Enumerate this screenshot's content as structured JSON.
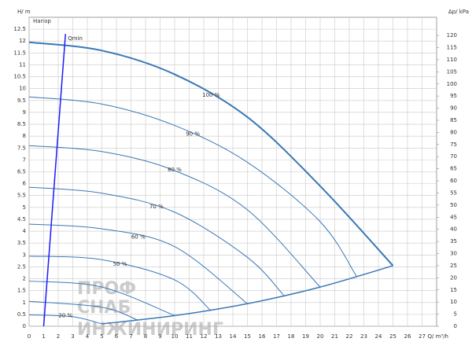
{
  "chart_data": {
    "type": "line",
    "ylabel": "H/ m",
    "ylabel_inner": "Напор",
    "y2label": "Δp/ kPa",
    "xlabel": "Q/ m³/h",
    "xlim": [
      0,
      28
    ],
    "xticks": [
      0,
      1,
      2,
      3,
      4,
      5,
      6,
      7,
      8,
      9,
      10,
      11,
      12,
      13,
      14,
      15,
      16,
      17,
      18,
      19,
      20,
      21,
      22,
      23,
      24,
      25,
      26,
      27
    ],
    "ylim": [
      0,
      13
    ],
    "yticks": [
      0,
      0.5,
      1,
      1.5,
      2,
      2.5,
      3,
      3.5,
      4,
      4.5,
      5,
      5.5,
      6,
      6.5,
      7,
      7.5,
      8,
      8.5,
      9,
      9.5,
      10,
      10.5,
      11,
      11.5,
      12,
      12.5
    ],
    "y2lim": [
      0,
      127.5
    ],
    "y2ticks": [
      0,
      5,
      10,
      15,
      20,
      25,
      30,
      35,
      40,
      45,
      50,
      55,
      60,
      65,
      70,
      75,
      80,
      85,
      90,
      95,
      100,
      105,
      110,
      115,
      120
    ],
    "grid": true,
    "series": [
      {
        "name": "100 %",
        "color": "#3a78b5",
        "width": 2,
        "x": [
          0,
          5,
          10,
          15,
          20,
          25
        ],
        "values": [
          11.95,
          11.6,
          10.6,
          8.8,
          5.9,
          2.55
        ]
      },
      {
        "name": "90 %",
        "color": "#3a78b5",
        "width": 1,
        "x": [
          0,
          5,
          10,
          15,
          20,
          22.5
        ],
        "values": [
          9.65,
          9.35,
          8.45,
          6.9,
          4.4,
          2.1
        ]
      },
      {
        "name": "80 %",
        "color": "#3a78b5",
        "width": 1,
        "x": [
          0,
          5,
          10,
          15,
          20
        ],
        "values": [
          7.6,
          7.35,
          6.55,
          4.9,
          1.65
        ]
      },
      {
        "name": "70 %",
        "color": "#3a78b5",
        "width": 1,
        "x": [
          0,
          5,
          10,
          15,
          17.5
        ],
        "values": [
          5.85,
          5.6,
          4.8,
          2.9,
          1.3
        ]
      },
      {
        "name": "60 %",
        "color": "#3a78b5",
        "width": 1,
        "x": [
          0,
          5,
          10,
          15
        ],
        "values": [
          4.3,
          4.1,
          3.35,
          0.95
        ]
      },
      {
        "name": "50 %",
        "color": "#3a78b5",
        "width": 1,
        "x": [
          0,
          5,
          10,
          12.5
        ],
        "values": [
          2.95,
          2.8,
          1.95,
          0.65
        ]
      },
      {
        "color": "#3a78b5",
        "width": 1,
        "x": [
          0,
          5,
          10
        ],
        "values": [
          1.9,
          1.65,
          0.45
        ]
      },
      {
        "color": "#3a78b5",
        "width": 1,
        "x": [
          0,
          5,
          7.5
        ],
        "values": [
          1.05,
          0.8,
          0.25
        ]
      },
      {
        "name": "20 %",
        "color": "#3a78b5",
        "width": 1,
        "x": [
          0,
          3,
          5
        ],
        "values": [
          0.48,
          0.4,
          0.1
        ]
      }
    ],
    "system_curve": {
      "color": "#3a78b5",
      "x": [
        5,
        10,
        15,
        20,
        25
      ],
      "values": [
        0.1,
        0.45,
        0.95,
        1.65,
        2.55
      ]
    },
    "qmin": {
      "name": "Qmin",
      "color": "#1a1aff",
      "x": [
        1,
        2.5
      ],
      "values": [
        0,
        12.3
      ]
    },
    "watermark": [
      "ПРОФ",
      "СНАБ",
      "ИНЖИНИРИНГ"
    ]
  }
}
